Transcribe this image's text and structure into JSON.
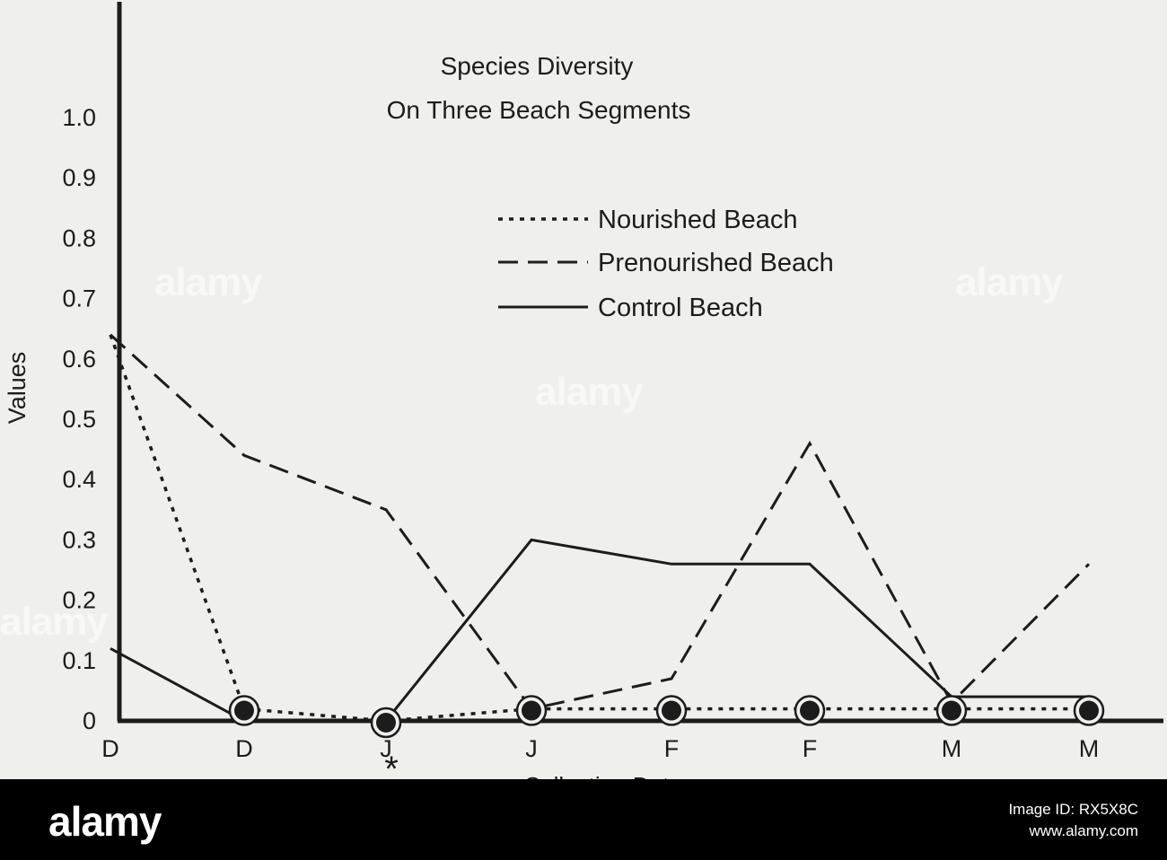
{
  "colors": {
    "ink": "#1c1c1c",
    "paper": "#efefec",
    "footer_bg": "#000000"
  },
  "watermark": "alamy",
  "footer": {
    "logo": "alamy",
    "image_id_line": "Image ID: RX5X8C",
    "site": "www.alamy.com"
  },
  "chart_data": {
    "type": "line",
    "title": "Species Diversity",
    "subtitle": "On Three Beach Segments",
    "ylabel": "Values",
    "xlabel": "Collection Dates",
    "marker": "*",
    "marker_at_index": 2,
    "ylim": [
      0,
      1.0
    ],
    "y_ticks": [
      {
        "value": 1.0,
        "label": "1.0"
      },
      {
        "value": 0.9,
        "label": "0.9"
      },
      {
        "value": 0.8,
        "label": "0.8"
      },
      {
        "value": 0.7,
        "label": "0.7"
      },
      {
        "value": 0.6,
        "label": "0.6"
      },
      {
        "value": 0.5,
        "label": "0.5"
      },
      {
        "value": 0.4,
        "label": "0.4"
      },
      {
        "value": 0.3,
        "label": "0.3"
      },
      {
        "value": 0.2,
        "label": "0.2"
      },
      {
        "value": 0.1,
        "label": "0.1"
      },
      {
        "value": 0.0,
        "label": "0"
      }
    ],
    "categories": [
      "D",
      "D",
      "J",
      "J",
      "F",
      "F",
      "M",
      "M"
    ],
    "grid": false,
    "legend_position": "top-right",
    "series": [
      {
        "name": "Nourished Beach",
        "style": "dotted",
        "values": [
          0.64,
          0.02,
          0.0,
          0.02,
          0.02,
          0.02,
          0.02,
          0.02
        ],
        "circles": [
          false,
          true,
          true,
          true,
          true,
          true,
          true,
          true
        ]
      },
      {
        "name": "Prenourished Beach",
        "style": "dashed",
        "values": [
          0.64,
          0.44,
          0.35,
          0.02,
          0.07,
          0.46,
          0.03,
          0.26
        ]
      },
      {
        "name": "Control Beach",
        "style": "solid",
        "values": [
          0.12,
          0.0,
          0.0,
          0.3,
          0.26,
          0.26,
          0.04,
          0.04
        ]
      }
    ]
  }
}
